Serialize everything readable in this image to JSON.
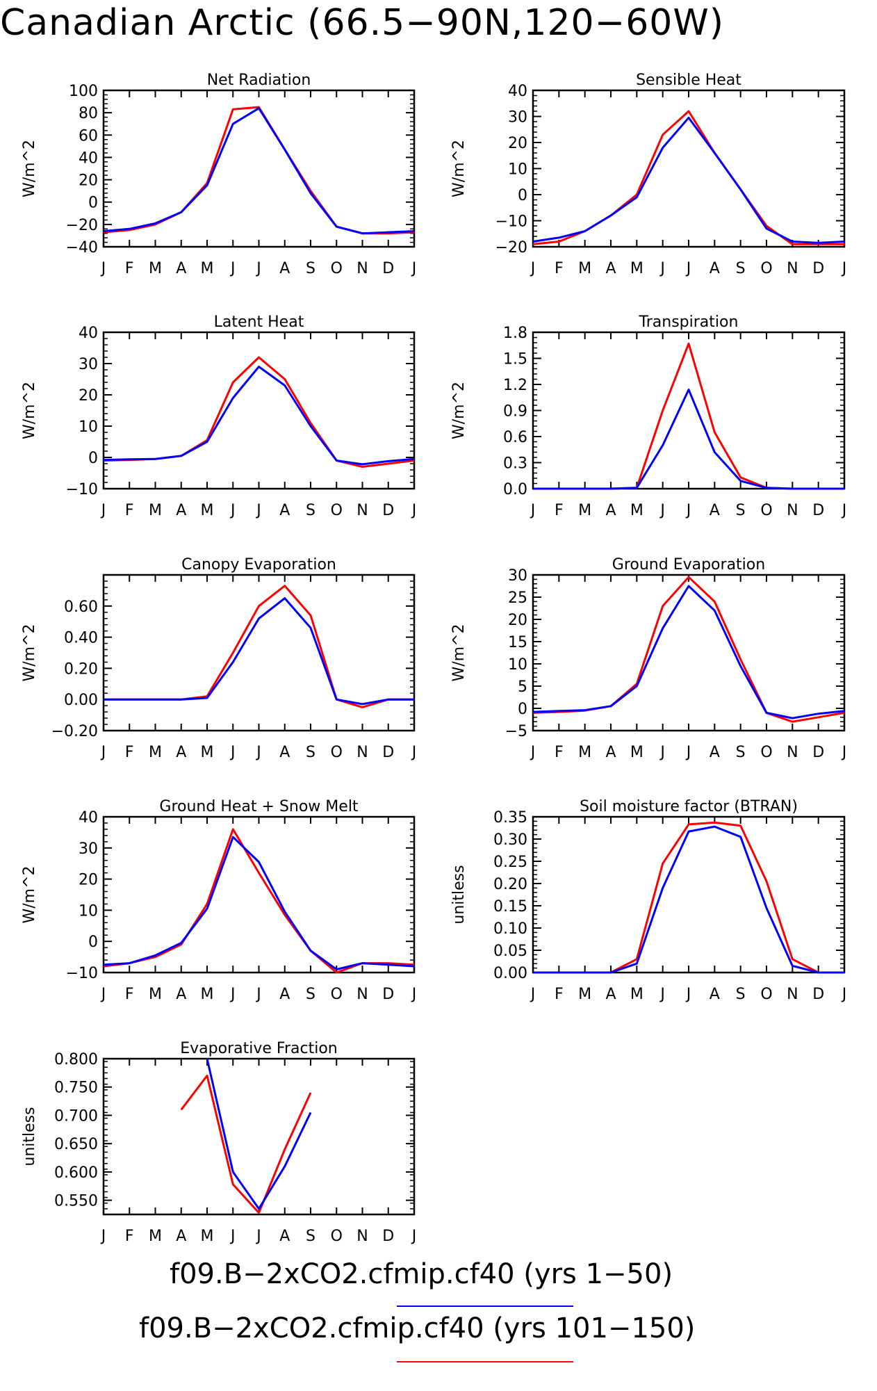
{
  "title": "Canadian Arctic (66.5−90N,120−60W)",
  "legend": [
    {
      "label": "f09.B−2xCO2.cfmip.cf40 (yrs 1−50)",
      "color": "#0000ff"
    },
    {
      "label": "f09.B−2xCO2.cfmip.cf40 (yrs 101−150)",
      "color": "#ff0000"
    }
  ],
  "months": [
    "J",
    "F",
    "M",
    "A",
    "M",
    "J",
    "J",
    "A",
    "S",
    "O",
    "N",
    "D",
    "J"
  ],
  "chart_data": [
    {
      "type": "line",
      "title": "Net Radiation",
      "ylabel": "W/m^2",
      "ylim": [
        -40,
        100
      ],
      "yticks": [
        -40,
        -20,
        0,
        20,
        40,
        60,
        80,
        100
      ],
      "yticklabels": [
        "−40",
        "−20",
        "0",
        "20",
        "40",
        "60",
        "80",
        "100"
      ],
      "series": [
        {
          "color": "#ff0000",
          "values": [
            -27,
            -25,
            -20,
            -9,
            17,
            83,
            85,
            47,
            10,
            -22,
            -28,
            -28,
            -27
          ]
        },
        {
          "color": "#0000ff",
          "values": [
            -26,
            -24,
            -19,
            -9,
            15,
            70,
            84,
            47,
            8,
            -22,
            -28,
            -27,
            -26
          ]
        }
      ]
    },
    {
      "type": "line",
      "title": "Sensible Heat",
      "ylabel": "W/m^2",
      "ylim": [
        -20,
        40
      ],
      "yticks": [
        -20,
        -10,
        0,
        10,
        20,
        30,
        40
      ],
      "yticklabels": [
        "−20",
        "−10",
        "0",
        "10",
        "20",
        "30",
        "40"
      ],
      "series": [
        {
          "color": "#ff0000",
          "values": [
            -19,
            -18,
            -14,
            -8,
            0,
            23,
            32,
            16,
            2,
            -12,
            -19,
            -19,
            -19
          ]
        },
        {
          "color": "#0000ff",
          "values": [
            -18,
            -16.5,
            -14,
            -8,
            -1,
            18,
            29.5,
            16,
            2,
            -13,
            -18,
            -18.5,
            -18
          ]
        }
      ]
    },
    {
      "type": "line",
      "title": "Latent Heat",
      "ylabel": "W/m^2",
      "ylim": [
        -10,
        40
      ],
      "yticks": [
        -10,
        0,
        10,
        20,
        30,
        40
      ],
      "yticklabels": [
        "−10",
        "0",
        "10",
        "20",
        "30",
        "40"
      ],
      "series": [
        {
          "color": "#ff0000",
          "values": [
            -1,
            -0.8,
            -0.5,
            0.5,
            5.5,
            24,
            32,
            25,
            11,
            -1,
            -3,
            -2,
            -1
          ]
        },
        {
          "color": "#0000ff",
          "values": [
            -0.8,
            -0.6,
            -0.5,
            0.5,
            5,
            19,
            29,
            23,
            10,
            -1,
            -2.2,
            -1.2,
            -0.5
          ]
        }
      ]
    },
    {
      "type": "line",
      "title": "Transpiration",
      "ylabel": "W/m^2",
      "ylim": [
        0,
        1.8
      ],
      "yticks": [
        0,
        0.3,
        0.6,
        0.9,
        1.2,
        1.5,
        1.8
      ],
      "yticklabels": [
        "0.0",
        "0.3",
        "0.6",
        "0.9",
        "1.2",
        "1.5",
        "1.8"
      ],
      "series": [
        {
          "color": "#ff0000",
          "values": [
            0,
            0,
            0,
            0,
            0.01,
            0.9,
            1.67,
            0.65,
            0.13,
            0.01,
            0,
            0,
            0
          ]
        },
        {
          "color": "#0000ff",
          "values": [
            0,
            0,
            0,
            0,
            0.01,
            0.5,
            1.14,
            0.42,
            0.09,
            0.01,
            0,
            0,
            0
          ]
        }
      ]
    },
    {
      "type": "line",
      "title": "Canopy Evaporation",
      "ylabel": "W/m^2",
      "ylim": [
        -0.2,
        0.8
      ],
      "yticks": [
        -0.2,
        0,
        0.2,
        0.4,
        0.6
      ],
      "yticklabels": [
        "−0.20",
        "0.00",
        "0.20",
        "0.40",
        "0.60"
      ],
      "series": [
        {
          "color": "#ff0000",
          "values": [
            0,
            0,
            0,
            0,
            0.02,
            0.3,
            0.6,
            0.73,
            0.54,
            0,
            -0.05,
            0,
            0
          ]
        },
        {
          "color": "#0000ff",
          "values": [
            0,
            0,
            0,
            0,
            0.01,
            0.24,
            0.52,
            0.65,
            0.46,
            0,
            -0.03,
            0,
            0
          ]
        }
      ]
    },
    {
      "type": "line",
      "title": "Ground Evaporation",
      "ylabel": "W/m^2",
      "ylim": [
        -5,
        30
      ],
      "yticks": [
        -5,
        0,
        5,
        10,
        15,
        20,
        25,
        30
      ],
      "yticklabels": [
        "−5",
        "0",
        "5",
        "10",
        "15",
        "20",
        "25",
        "30"
      ],
      "series": [
        {
          "color": "#ff0000",
          "values": [
            -1,
            -0.8,
            -0.5,
            0.5,
            5.5,
            23,
            29.5,
            24,
            11,
            -1,
            -3,
            -2,
            -1
          ]
        },
        {
          "color": "#0000ff",
          "values": [
            -0.8,
            -0.6,
            -0.4,
            0.5,
            5,
            18,
            27.5,
            22,
            9.5,
            -1,
            -2.2,
            -1.2,
            -0.6
          ]
        }
      ]
    },
    {
      "type": "line",
      "title": "Ground Heat + Snow Melt",
      "ylabel": "W/m^2",
      "ylim": [
        -10,
        40
      ],
      "yticks": [
        -10,
        0,
        10,
        20,
        30,
        40
      ],
      "yticklabels": [
        "−10",
        "0",
        "10",
        "20",
        "30",
        "40"
      ],
      "series": [
        {
          "color": "#ff0000",
          "values": [
            -8,
            -7,
            -5,
            -1,
            12,
            36,
            22,
            8.5,
            -3,
            -10,
            -7,
            -7,
            -7.5
          ]
        },
        {
          "color": "#0000ff",
          "values": [
            -7.5,
            -7,
            -4.5,
            -0.5,
            10.5,
            33.5,
            25.5,
            9.5,
            -3,
            -9,
            -7,
            -7.5,
            -8
          ]
        }
      ]
    },
    {
      "type": "line",
      "title": "Soil moisture factor (BTRAN)",
      "ylabel": "unitless",
      "ylim": [
        0,
        0.35
      ],
      "yticks": [
        0,
        0.05,
        0.1,
        0.15,
        0.2,
        0.25,
        0.3,
        0.35
      ],
      "yticklabels": [
        "0.00",
        "0.05",
        "0.10",
        "0.15",
        "0.20",
        "0.25",
        "0.30",
        "0.35"
      ],
      "series": [
        {
          "color": "#ff0000",
          "values": [
            0,
            0,
            0,
            0,
            0.03,
            0.245,
            0.333,
            0.337,
            0.33,
            0.205,
            0.03,
            0,
            0
          ]
        },
        {
          "color": "#0000ff",
          "values": [
            0,
            0,
            0,
            0,
            0.02,
            0.19,
            0.317,
            0.328,
            0.305,
            0.145,
            0.015,
            0,
            0
          ]
        }
      ]
    },
    {
      "type": "line",
      "title": "Evaporative Fraction",
      "ylabel": "unitless",
      "ylim": [
        0.525,
        0.8
      ],
      "yticks": [
        0.55,
        0.6,
        0.65,
        0.7,
        0.75,
        0.8
      ],
      "yticklabels": [
        "0.550",
        "0.600",
        "0.650",
        "0.700",
        "0.750",
        "0.800"
      ],
      "series": [
        {
          "color": "#ff0000",
          "values": [
            null,
            null,
            null,
            0.71,
            0.77,
            0.578,
            0.528,
            0.64,
            0.74,
            null,
            null,
            null,
            null
          ]
        },
        {
          "color": "#0000ff",
          "values": [
            null,
            null,
            null,
            null,
            0.8,
            0.6,
            0.535,
            0.61,
            0.705,
            null,
            null,
            null,
            null
          ]
        }
      ]
    }
  ]
}
